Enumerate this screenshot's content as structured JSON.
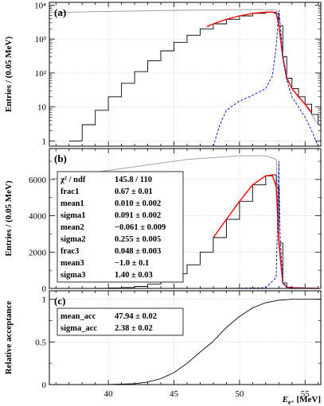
{
  "chart_data": [
    {
      "type": "line",
      "panel_label": "(a)",
      "ylabel": "Entries / (0.05 MeV)",
      "yscale": "log",
      "xlim": [
        35.5,
        56.2
      ],
      "ylim": [
        0.7,
        12000
      ],
      "yticks": [
        1,
        10,
        100,
        1000,
        10000
      ],
      "yticklabels": [
        "1",
        "10",
        "10²",
        "10³",
        "10⁴"
      ],
      "grid": true,
      "series": [
        {
          "role": "data-histogram",
          "color": "#000000",
          "x": [
            37.0,
            38.0,
            39.0,
            40.0,
            41.0,
            42.0,
            43.0,
            44.0,
            45.0,
            46.0,
            47.0,
            48.0,
            49.0,
            50.0,
            51.0,
            52.0,
            52.5,
            52.8,
            53.0,
            53.3,
            53.6,
            54.0,
            54.5,
            55.0,
            55.5,
            56.0
          ],
          "y": [
            1.0,
            3.0,
            8,
            20,
            50,
            110,
            230,
            450,
            800,
            1300,
            2000,
            2800,
            3800,
            4800,
            5700,
            6200,
            6200,
            5600,
            2500,
            300,
            70,
            35,
            20,
            12,
            6,
            3
          ]
        },
        {
          "role": "acceptance-weighted-curve",
          "color": "#999999",
          "x": [
            35.5,
            40,
            45,
            50,
            52,
            52.8,
            53.0,
            53.3,
            53.6,
            54,
            55,
            56
          ],
          "y": [
            6000,
            6500,
            7000,
            7300,
            7300,
            7100,
            3000,
            350,
            80,
            35,
            12,
            3
          ]
        },
        {
          "role": "fit",
          "color": "#ff0000",
          "x": [
            47.5,
            48,
            49,
            50,
            51,
            52,
            52.5,
            52.8,
            53.0,
            53.3,
            53.6,
            54,
            54.5,
            55,
            55.5
          ],
          "y": [
            2300,
            2800,
            3800,
            4800,
            5700,
            6200,
            6250,
            5600,
            2500,
            300,
            70,
            35,
            20,
            12,
            7
          ]
        },
        {
          "role": "fit-component",
          "color": "#0000cc",
          "dashed": true,
          "x": [
            48.0,
            48.5,
            49,
            50,
            51,
            52,
            52.5,
            52.8,
            53.0,
            53.1,
            53.3,
            53.6,
            54,
            54.5,
            55,
            55.5,
            56
          ],
          "y": [
            0.7,
            3,
            8,
            15,
            22,
            35,
            80,
            600,
            7000,
            3000,
            300,
            60,
            20,
            10,
            5,
            2,
            0.7
          ]
        }
      ]
    },
    {
      "type": "line",
      "panel_label": "(b)",
      "ylabel": "Entries / (0.05 MeV)",
      "yscale": "linear",
      "xlim": [
        35.5,
        56.2
      ],
      "ylim": [
        0,
        7700
      ],
      "yticks": [
        0,
        2000,
        4000,
        6000
      ],
      "grid": true,
      "series": [
        {
          "role": "data-histogram",
          "color": "#000000",
          "x": [
            38,
            39,
            40,
            41,
            42,
            43,
            44,
            45,
            46,
            47,
            48,
            49,
            50,
            51,
            52,
            52.5,
            52.8,
            53.0,
            53.3,
            53.6,
            54,
            55,
            56
          ],
          "y": [
            3,
            8,
            20,
            50,
            110,
            230,
            450,
            800,
            1300,
            2000,
            2800,
            3800,
            4800,
            5700,
            6200,
            6250,
            5600,
            2500,
            300,
            70,
            35,
            12,
            3
          ]
        },
        {
          "role": "acceptance-weighted-curve",
          "color": "#999999",
          "x": [
            35.5,
            38,
            40,
            42,
            44,
            46,
            48,
            50,
            52,
            52.8,
            53.0,
            53.3,
            53.6,
            54,
            55,
            56
          ],
          "y": [
            6000,
            6300,
            6500,
            6700,
            6900,
            7100,
            7200,
            7300,
            7300,
            7100,
            3000,
            300,
            70,
            35,
            12,
            3
          ]
        },
        {
          "role": "fit",
          "color": "#ff0000",
          "x": [
            48,
            49,
            50,
            51,
            52,
            52.5,
            52.8,
            53.0,
            53.3,
            53.6,
            54,
            55,
            56
          ],
          "y": [
            2800,
            3800,
            4800,
            5700,
            6200,
            6250,
            5600,
            2500,
            300,
            70,
            35,
            12,
            3
          ]
        },
        {
          "role": "fit-component",
          "color": "#0000cc",
          "dashed": true,
          "x": [
            48,
            50,
            52,
            52.8,
            53.0,
            53.1,
            53.3,
            53.6,
            54,
            56
          ],
          "y": [
            0,
            15,
            35,
            600,
            7000,
            3000,
            300,
            60,
            20,
            0
          ]
        }
      ],
      "stats": [
        {
          "name": "χ² / ndf",
          "value": "145.8 / 110"
        },
        {
          "name": "frac1",
          "value": "0.67",
          "error": "0.01"
        },
        {
          "name": "mean1",
          "value": "0.010",
          "error": "0.002"
        },
        {
          "name": "sigma1",
          "value": "0.091",
          "error": "0.002"
        },
        {
          "name": "mean2",
          "value": "−0.061",
          "error": "0.009"
        },
        {
          "name": "sigma2",
          "value": "0.255",
          "error": "0.005"
        },
        {
          "name": "frac3",
          "value": "0.048",
          "error": "0.003"
        },
        {
          "name": "mean3",
          "value": "−1.0",
          "error": "0.1"
        },
        {
          "name": "sigma3",
          "value": "1.40",
          "error": "0.03"
        }
      ]
    },
    {
      "type": "line",
      "panel_label": "(c)",
      "ylabel": "Relative acceptance",
      "xlabel": "E",
      "xlabel_sub": "e⁺",
      "xlabel_unit": " [MeV]",
      "yscale": "linear",
      "xlim": [
        35.5,
        56.2
      ],
      "ylim": [
        0,
        1.1
      ],
      "xticks": [
        40,
        45,
        50,
        55
      ],
      "yticks": [
        0,
        0.5,
        1
      ],
      "grid": true,
      "series": [
        {
          "role": "acceptance",
          "color": "#000000",
          "x": [
            35.5,
            38,
            40,
            42,
            43,
            44,
            45,
            46,
            47,
            47.94,
            49,
            50,
            51,
            52,
            53,
            54,
            55,
            56.2
          ],
          "y": [
            0,
            0,
            0,
            0.01,
            0.03,
            0.07,
            0.14,
            0.25,
            0.38,
            0.5,
            0.67,
            0.8,
            0.9,
            0.96,
            0.99,
            1.0,
            1.0,
            1.0
          ]
        }
      ],
      "stats": [
        {
          "name": "mean_acc",
          "value": "47.94",
          "error": "0.02"
        },
        {
          "name": "sigma_acc",
          "value": "2.38",
          "error": "0.02"
        }
      ]
    }
  ]
}
